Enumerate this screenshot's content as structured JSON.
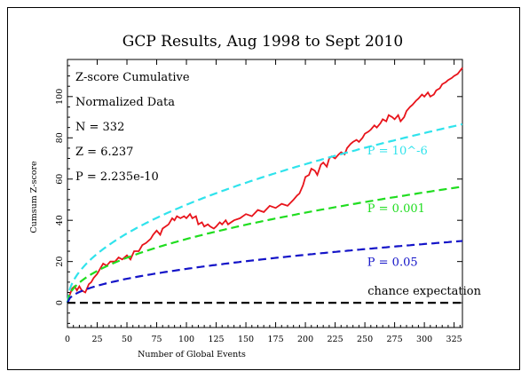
{
  "chart_data": {
    "type": "line",
    "title": "GCP Results, Aug 1998 to Sept 2010",
    "xlabel": "Number of Global Events",
    "ylabel": "Cumsum Z-score",
    "xlim": [
      0,
      332
    ],
    "ylim": [
      -12,
      118
    ],
    "xticks": [
      0,
      25,
      50,
      75,
      100,
      125,
      150,
      175,
      200,
      225,
      250,
      275,
      300,
      325
    ],
    "yticks": [
      0,
      20,
      40,
      60,
      80,
      100
    ],
    "grid": false,
    "stats_lines": [
      "Z-score Cumulative",
      "Normalized Data",
      "N = 332",
      "Z = 6.237",
      "P = 2.235e-10"
    ],
    "series": [
      {
        "label": "",
        "color": "#e8141b",
        "style": "solid",
        "x": [
          0,
          2,
          4,
          6,
          8,
          10,
          12,
          15,
          18,
          20,
          22,
          25,
          28,
          30,
          33,
          36,
          40,
          43,
          46,
          50,
          53,
          56,
          60,
          63,
          66,
          70,
          72,
          75,
          78,
          80,
          85,
          88,
          90,
          92,
          95,
          98,
          100,
          103,
          105,
          108,
          110,
          113,
          115,
          118,
          120,
          123,
          125,
          128,
          130,
          133,
          135,
          140,
          145,
          150,
          155,
          160,
          165,
          170,
          175,
          180,
          185,
          190,
          193,
          195,
          198,
          200,
          203,
          205,
          208,
          210,
          213,
          215,
          218,
          220,
          222,
          225,
          228,
          230,
          233,
          235,
          238,
          240,
          243,
          245,
          248,
          250,
          253,
          255,
          258,
          260,
          263,
          265,
          268,
          270,
          273,
          275,
          278,
          280,
          283,
          285,
          288,
          290,
          293,
          295,
          298,
          300,
          303,
          305,
          308,
          310,
          313,
          315,
          318,
          320,
          323,
          325,
          328,
          332
        ],
        "y": [
          0,
          4,
          7,
          8,
          6,
          8,
          6,
          5,
          9,
          10,
          12,
          14,
          17,
          19,
          18,
          20,
          20,
          22,
          21,
          23,
          21,
          25,
          25,
          28,
          29,
          31,
          33,
          35,
          33,
          36,
          38,
          41,
          40,
          42,
          41,
          42,
          41,
          43,
          41,
          42,
          38,
          39,
          37,
          38,
          37,
          36,
          37,
          39,
          38,
          40,
          38,
          40,
          41,
          43,
          42,
          45,
          44,
          47,
          46,
          48,
          47,
          50,
          52,
          53,
          57,
          61,
          62,
          65,
          64,
          62,
          67,
          68,
          66,
          70,
          71,
          70,
          72,
          73,
          72,
          75,
          77,
          78,
          79,
          78,
          80,
          82,
          83,
          84,
          86,
          85,
          87,
          89,
          88,
          91,
          90,
          89,
          91,
          88,
          90,
          93,
          95,
          96,
          98,
          99,
          101,
          100,
          102,
          100,
          101,
          103,
          104,
          106,
          107,
          108,
          109,
          110,
          111,
          114
        ]
      },
      {
        "label": "P = 10^-6",
        "color": "#30e3ec",
        "style": "dashed",
        "multiplier": 4.753
      },
      {
        "label": "P = 0.001",
        "color": "#20dd20",
        "style": "dashed",
        "multiplier": 3.09
      },
      {
        "label": "P = 0.05",
        "color": "#1414c8",
        "style": "dashed",
        "multiplier": 1.645
      },
      {
        "label": "chance expectation",
        "color": "#000000",
        "style": "dashed",
        "constant": 0
      }
    ]
  }
}
